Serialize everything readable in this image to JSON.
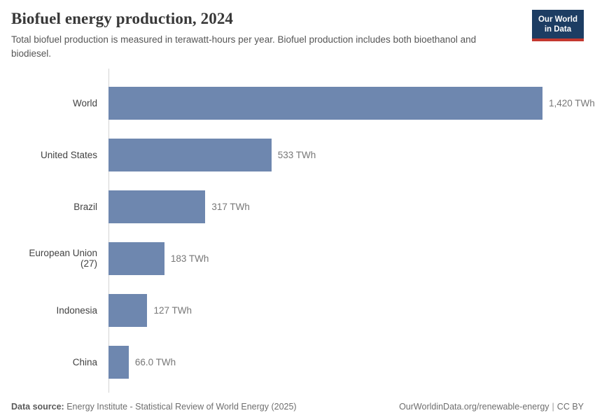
{
  "header": {
    "title": "Biofuel energy production, 2024",
    "subtitle": "Total biofuel production is measured in terawatt-hours per year. Biofuel production includes both bioethanol and biodiesel.",
    "logo": {
      "line1": "Our World",
      "line2": "in Data"
    }
  },
  "chart_data": {
    "type": "bar",
    "orientation": "horizontal",
    "title": "Biofuel energy production, 2024",
    "unit": "TWh",
    "categories": [
      "World",
      "United States",
      "Brazil",
      "European Union (27)",
      "Indonesia",
      "China"
    ],
    "values": [
      1420,
      533,
      317,
      183,
      127,
      66.0
    ],
    "value_labels": [
      "1,420 TWh",
      "533 TWh",
      "317 TWh",
      "183 TWh",
      "127 TWh",
      "66.0 TWh"
    ],
    "xlim": [
      0,
      1420
    ],
    "grid": false,
    "legend": "none",
    "bar_color": "#6e87af"
  },
  "colors": {
    "bar": "#6e87af",
    "axis_line": "#d4d4d4",
    "logo_bg": "#1d3d63",
    "logo_accent": "#c4382f"
  },
  "footer": {
    "datasource_label": "Data source:",
    "datasource_text": " Energy Institute - Statistical Review of World Energy (2025)",
    "link": "OurWorldinData.org/renewable-energy",
    "separator": "|",
    "license": "CC BY"
  }
}
